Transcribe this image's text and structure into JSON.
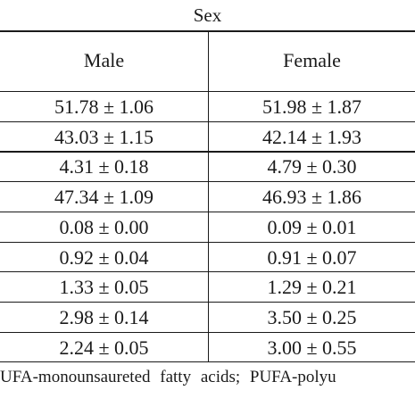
{
  "table": {
    "group_header": "Sex",
    "columns": [
      "Male",
      "Female"
    ],
    "rows": [
      [
        "51.78 ± 1.06",
        "51.98 ± 1.87"
      ],
      [
        "43.03 ± 1.15",
        "42.14 ± 1.93"
      ],
      [
        "4.31 ± 0.18",
        "4.79 ± 0.30"
      ],
      [
        "47.34 ± 1.09",
        "46.93 ± 1.86"
      ],
      [
        "0.08 ± 0.00",
        "0.09 ± 0.01"
      ],
      [
        "0.92 ± 0.04",
        "0.91 ± 0.07"
      ],
      [
        "1.33 ± 0.05",
        "1.29 ± 0.21"
      ],
      [
        "2.98 ± 0.14",
        "3.50 ± 0.25"
      ],
      [
        "2.24 ± 0.05",
        "3.00 ± 0.55"
      ]
    ]
  },
  "footnote": "UFA-monounsaureted fatty acids; PUFA-polyu"
}
